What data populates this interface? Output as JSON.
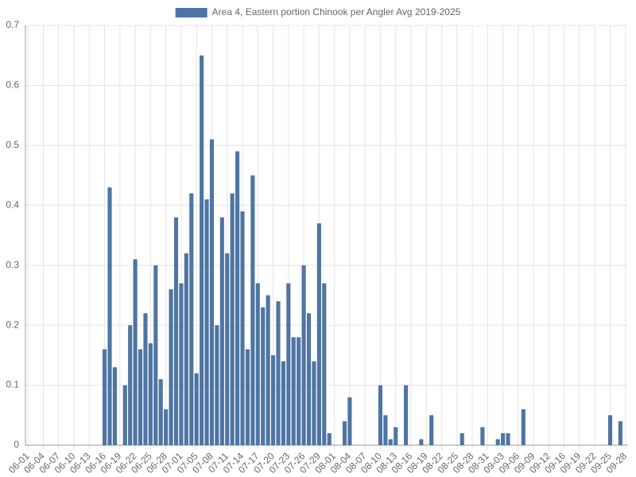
{
  "chart_data": {
    "type": "bar",
    "series": [
      {
        "name": "Area 4, Eastern portion Chinook per Angler Avg 2019-2025",
        "color": "#4e75a3",
        "values": [
          0,
          0,
          0,
          0,
          0,
          0,
          0,
          0,
          0,
          0,
          0,
          0,
          0,
          0,
          0,
          0.16,
          0.43,
          0.13,
          0,
          0.1,
          0.2,
          0.31,
          0.16,
          0.22,
          0.17,
          0.3,
          0.11,
          0.06,
          0.26,
          0.38,
          0.27,
          0.32,
          0.42,
          0.12,
          0.65,
          0.41,
          0.51,
          0.2,
          0.38,
          0.32,
          0.42,
          0.49,
          0.39,
          0.16,
          0.45,
          0.27,
          0.23,
          0.25,
          0.15,
          0.24,
          0.14,
          0.27,
          0.18,
          0.18,
          0.3,
          0.22,
          0.14,
          0.37,
          0.27,
          0.02,
          0,
          0,
          0.04,
          0.08,
          0,
          0,
          0,
          0,
          0,
          0.1,
          0.05,
          0.01,
          0.03,
          0,
          0.1,
          0,
          0,
          0.01,
          0,
          0.05,
          0,
          0,
          0,
          0,
          0,
          0.02,
          0,
          0,
          0,
          0.03,
          0,
          0,
          0.01,
          0.02,
          0.02,
          0,
          0,
          0.06,
          0,
          0,
          0,
          0,
          0,
          0,
          0,
          0,
          0,
          0,
          0,
          0,
          0,
          0,
          0,
          0,
          0.05,
          0,
          0.04,
          0
        ]
      }
    ],
    "categories": [
      "06-01",
      null,
      null,
      "06-04",
      null,
      null,
      "06-07",
      null,
      null,
      "06-10",
      null,
      null,
      "06-13",
      null,
      null,
      "06-16",
      null,
      null,
      "06-19",
      null,
      null,
      "06-22",
      null,
      null,
      "06-25",
      null,
      null,
      "06-28",
      null,
      null,
      "07-01",
      null,
      null,
      "07-05",
      null,
      null,
      "07-08",
      null,
      null,
      "07-11",
      null,
      null,
      "07-14",
      null,
      null,
      "07-17",
      null,
      null,
      "07-20",
      null,
      null,
      "07-23",
      null,
      null,
      "07-26",
      null,
      null,
      "07-29",
      null,
      null,
      "08-01",
      null,
      null,
      "08-04",
      null,
      null,
      "08-07",
      null,
      null,
      "08-10",
      null,
      null,
      "08-13",
      null,
      null,
      "08-16",
      null,
      null,
      "08-19",
      null,
      null,
      "08-22",
      null,
      null,
      "08-25",
      null,
      null,
      "08-28",
      null,
      null,
      "08-31",
      null,
      null,
      "09-03",
      null,
      null,
      "09-06",
      null,
      null,
      "09-09",
      null,
      null,
      "09-12",
      null,
      null,
      "09-16",
      null,
      null,
      "09-19",
      null,
      null,
      "09-22",
      null,
      null,
      "09-25",
      null,
      null,
      "09-28"
    ],
    "ylim": [
      0,
      0.7
    ],
    "yticks": [
      0,
      0.1,
      0.2,
      0.3,
      0.4,
      0.5,
      0.6,
      0.7
    ],
    "grid": true,
    "legend": "top"
  }
}
